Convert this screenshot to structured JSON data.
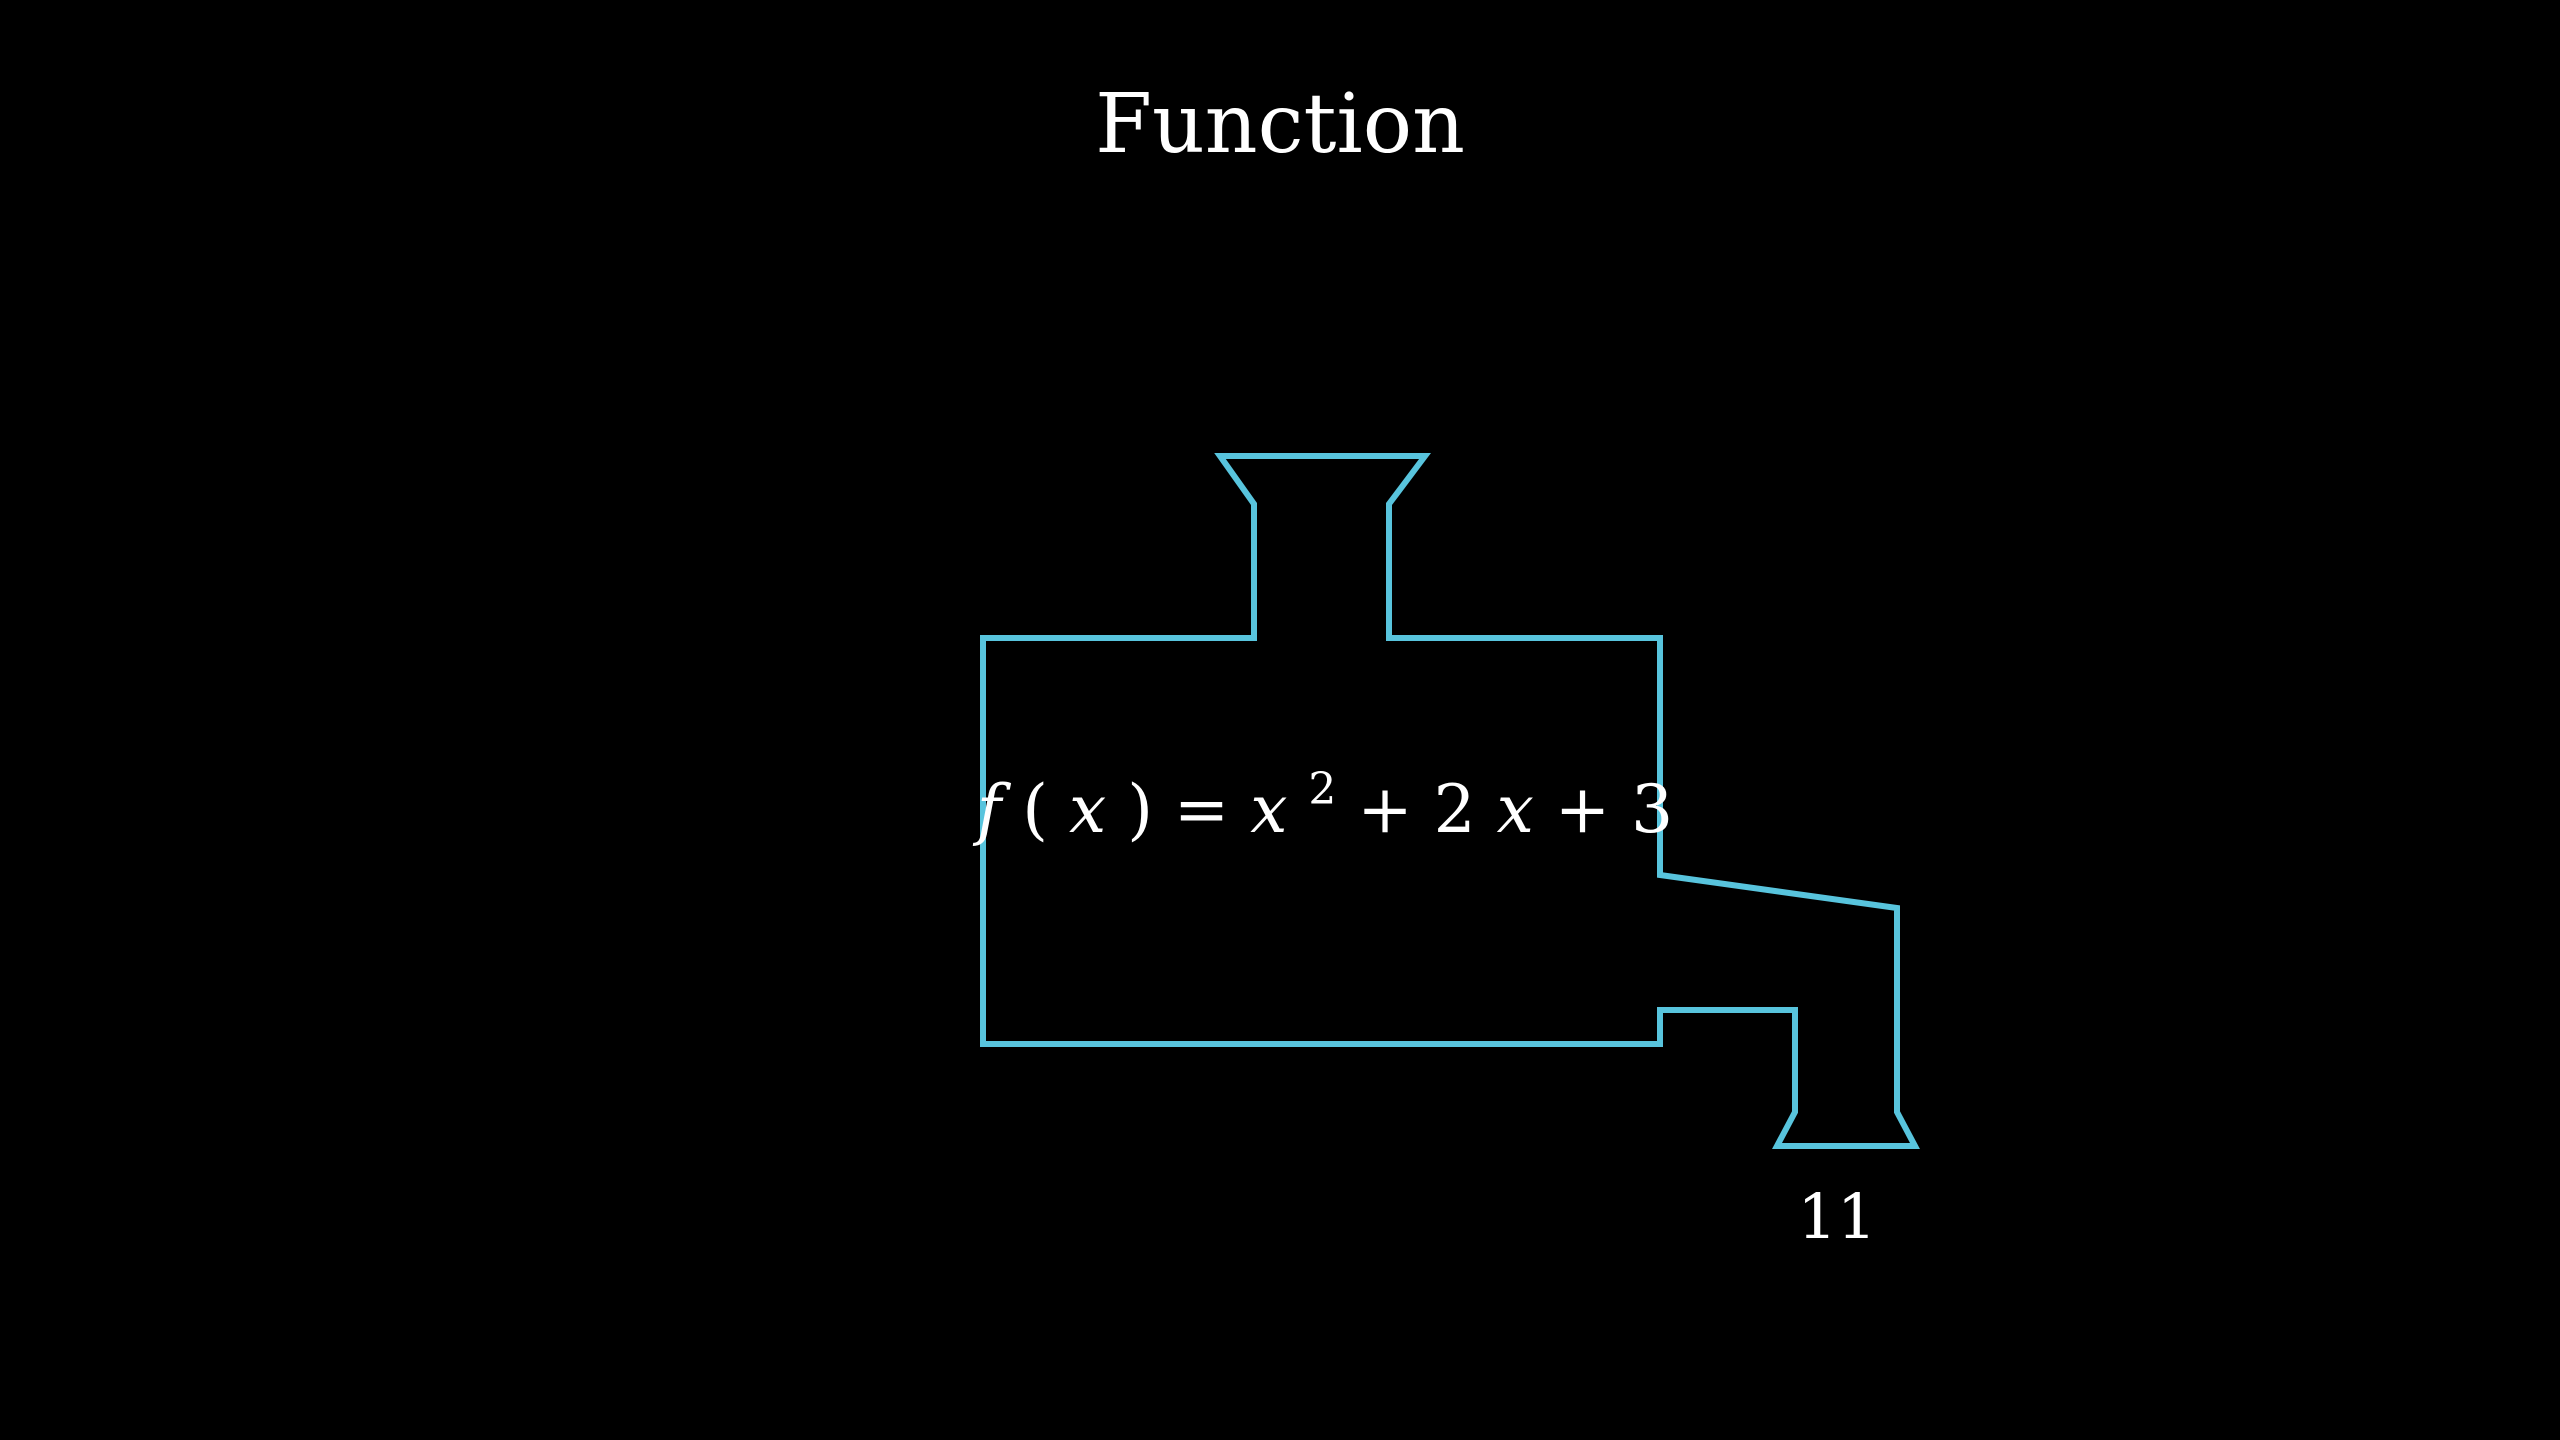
{
  "title": "Function",
  "machine": {
    "outline_color": "#58C4DD",
    "formula": {
      "fname": "f",
      "open_paren": "(",
      "var": "x",
      "close_paren_eq": ") = ",
      "term1_var": "x",
      "term1_exp": "2",
      "plus1": " + 2",
      "term2_var": "x",
      "tail": " + 3"
    },
    "output_value": "11"
  }
}
